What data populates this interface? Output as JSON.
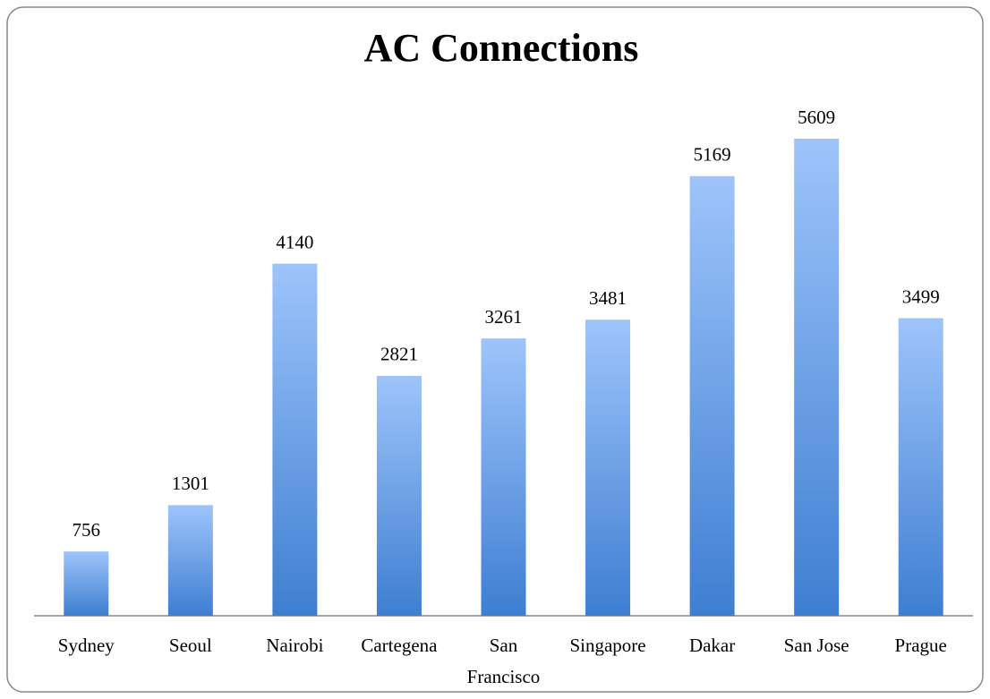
{
  "chart_data": {
    "type": "bar",
    "title": "AC Connections",
    "categories": [
      "Sydney",
      "Seoul",
      "Nairobi",
      "Cartegena",
      "San Francisco",
      "Singapore",
      "Dakar",
      "San Jose",
      "Prague"
    ],
    "values": [
      756,
      1301,
      4140,
      2821,
      3261,
      3481,
      5169,
      5609,
      3499
    ],
    "color": "#4a86d6",
    "grid": false
  }
}
